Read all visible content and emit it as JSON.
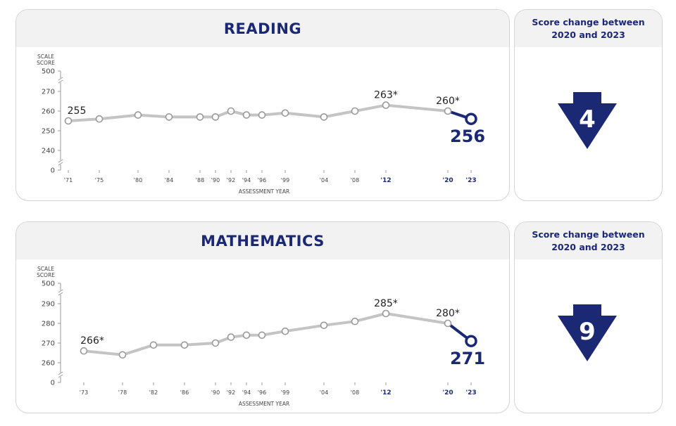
{
  "colors": {
    "navy": "#1b2873",
    "line": "#c4c4c4",
    "axis": "#9a9a9a"
  },
  "change_panel_title": "Score change between 2020 and 2023",
  "axis_title_line1": "SCALE",
  "axis_title_line2": "SCORE",
  "axis_xlabel": "ASSESSMENT YEAR",
  "chart_data": [
    {
      "type": "line",
      "title": "READING",
      "xlabel": "ASSESSMENT YEAR",
      "ylabel": "SCALE SCORE",
      "x": [
        1971,
        1975,
        1980,
        1984,
        1988,
        1990,
        1992,
        1994,
        1996,
        1999,
        2004,
        2008,
        2012,
        2020,
        2023
      ],
      "xtick_labels": [
        "'71",
        "'75",
        "'80",
        "'84",
        "'88",
        "'90",
        "'92",
        "'94",
        "'96",
        "'99",
        "'04",
        "'08",
        "'12",
        "'20",
        "'23"
      ],
      "series": [
        {
          "values": [
            255,
            256,
            258,
            257,
            257,
            257,
            260,
            258,
            258,
            259,
            257,
            260,
            263,
            260,
            256
          ]
        }
      ],
      "point_labels": [
        {
          "x": 1971,
          "text": "255"
        },
        {
          "x": 2012,
          "text": "263*"
        },
        {
          "x": 2020,
          "text": "260*"
        },
        {
          "x": 2023,
          "text": "256"
        }
      ],
      "ytick_labels": [
        "0",
        "240",
        "250",
        "260",
        "270",
        "500"
      ],
      "ylim_broken": [
        235,
        275
      ],
      "score_change": "4",
      "change_direction": "down"
    },
    {
      "type": "line",
      "title": "MATHEMATICS",
      "xlabel": "ASSESSMENT YEAR",
      "ylabel": "SCALE SCORE",
      "x": [
        1973,
        1978,
        1982,
        1986,
        1990,
        1992,
        1994,
        1996,
        1999,
        2004,
        2008,
        2012,
        2020,
        2023
      ],
      "xtick_labels": [
        "'73",
        "'78",
        "'82",
        "'86",
        "'90",
        "'92",
        "'94",
        "'96",
        "'99",
        "'04",
        "'08",
        "'12",
        "'20",
        "'23"
      ],
      "series": [
        {
          "values": [
            266,
            264,
            269,
            269,
            270,
            273,
            274,
            274,
            276,
            279,
            281,
            285,
            280,
            271
          ]
        }
      ],
      "point_labels": [
        {
          "x": 1973,
          "text": "266*"
        },
        {
          "x": 2012,
          "text": "285*"
        },
        {
          "x": 2020,
          "text": "280*"
        },
        {
          "x": 2023,
          "text": "271"
        }
      ],
      "ytick_labels": [
        "0",
        "260",
        "270",
        "280",
        "290",
        "500"
      ],
      "ylim_broken": [
        255,
        295
      ],
      "score_change": "9",
      "change_direction": "down"
    }
  ]
}
